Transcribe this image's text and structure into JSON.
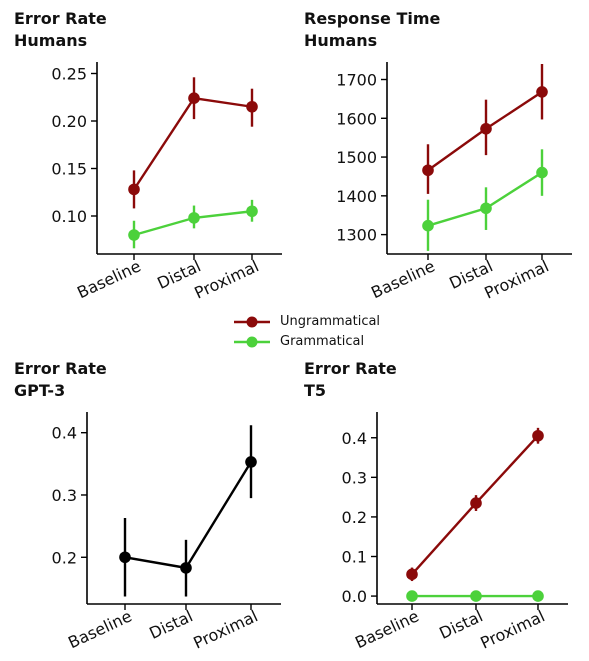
{
  "figure": {
    "legend": [
      {
        "label": "Ungrammatical",
        "color": "#8b0a0a"
      },
      {
        "label": "Grammatical",
        "color": "#4cd13b"
      }
    ]
  },
  "chart_data": [
    {
      "type": "line",
      "title_line1": "Error Rate",
      "title_line2": "Humans",
      "categories": [
        "Baseline",
        "Distal",
        "Proximal"
      ],
      "ylim": [
        0.06,
        0.26
      ],
      "yticks": [
        0.1,
        0.15,
        0.2,
        0.25
      ],
      "ytick_labels": [
        "0.10",
        "0.15",
        "0.20",
        "0.25"
      ],
      "series": [
        {
          "name": "Ungrammatical",
          "color": "#8b0a0a",
          "values": [
            0.128,
            0.224,
            0.215
          ],
          "err_low": [
            0.108,
            0.202,
            0.194
          ],
          "err_high": [
            0.148,
            0.246,
            0.234
          ]
        },
        {
          "name": "Grammatical",
          "color": "#4cd13b",
          "values": [
            0.08,
            0.098,
            0.105
          ],
          "err_low": [
            0.066,
            0.087,
            0.094
          ],
          "err_high": [
            0.095,
            0.111,
            0.117
          ]
        }
      ]
    },
    {
      "type": "line",
      "title_line1": "Response Time",
      "title_line2": "Humans",
      "categories": [
        "Baseline",
        "Distal",
        "Proximal"
      ],
      "ylim": [
        1250,
        1740
      ],
      "yticks": [
        1300,
        1400,
        1500,
        1600,
        1700
      ],
      "ytick_labels": [
        "1300",
        "1400",
        "1500",
        "1600",
        "1700"
      ],
      "series": [
        {
          "name": "Ungrammatical",
          "color": "#8b0a0a",
          "values": [
            1466,
            1573,
            1668
          ],
          "err_low": [
            1405,
            1505,
            1597
          ],
          "err_high": [
            1533,
            1648,
            1740
          ]
        },
        {
          "name": "Grammatical",
          "color": "#4cd13b",
          "values": [
            1323,
            1368,
            1460
          ],
          "err_low": [
            1258,
            1312,
            1400
          ],
          "err_high": [
            1390,
            1422,
            1520
          ]
        }
      ]
    },
    {
      "type": "line",
      "title_line1": "Error Rate",
      "title_line2": "GPT-3",
      "categories": [
        "Baseline",
        "Distal",
        "Proximal"
      ],
      "ylim": [
        0.125,
        0.43
      ],
      "yticks": [
        0.2,
        0.3,
        0.4
      ],
      "ytick_labels": [
        "0.2",
        "0.3",
        "0.4"
      ],
      "series": [
        {
          "color": "#000000",
          "values": [
            0.2,
            0.183,
            0.353
          ],
          "err_low": [
            0.137,
            0.137,
            0.295
          ],
          "err_high": [
            0.263,
            0.228,
            0.412
          ]
        }
      ]
    },
    {
      "type": "line",
      "title_line1": "Error Rate",
      "title_line2": "T5",
      "categories": [
        "Baseline",
        "Distal",
        "Proximal"
      ],
      "ylim": [
        -0.02,
        0.46
      ],
      "yticks": [
        0.0,
        0.1,
        0.2,
        0.3,
        0.4
      ],
      "ytick_labels": [
        "0.0",
        "0.1",
        "0.2",
        "0.3",
        "0.4"
      ],
      "series": [
        {
          "name": "Ungrammatical",
          "color": "#8b0a0a",
          "values": [
            0.055,
            0.235,
            0.405
          ],
          "err_low": [
            0.038,
            0.215,
            0.385
          ],
          "err_high": [
            0.072,
            0.255,
            0.425
          ]
        },
        {
          "name": "Grammatical",
          "color": "#4cd13b",
          "values": [
            0.0,
            0.0,
            0.0
          ],
          "err_low": [
            0.0,
            0.0,
            0.0
          ],
          "err_high": [
            0.0,
            0.0,
            0.0
          ]
        }
      ]
    }
  ]
}
